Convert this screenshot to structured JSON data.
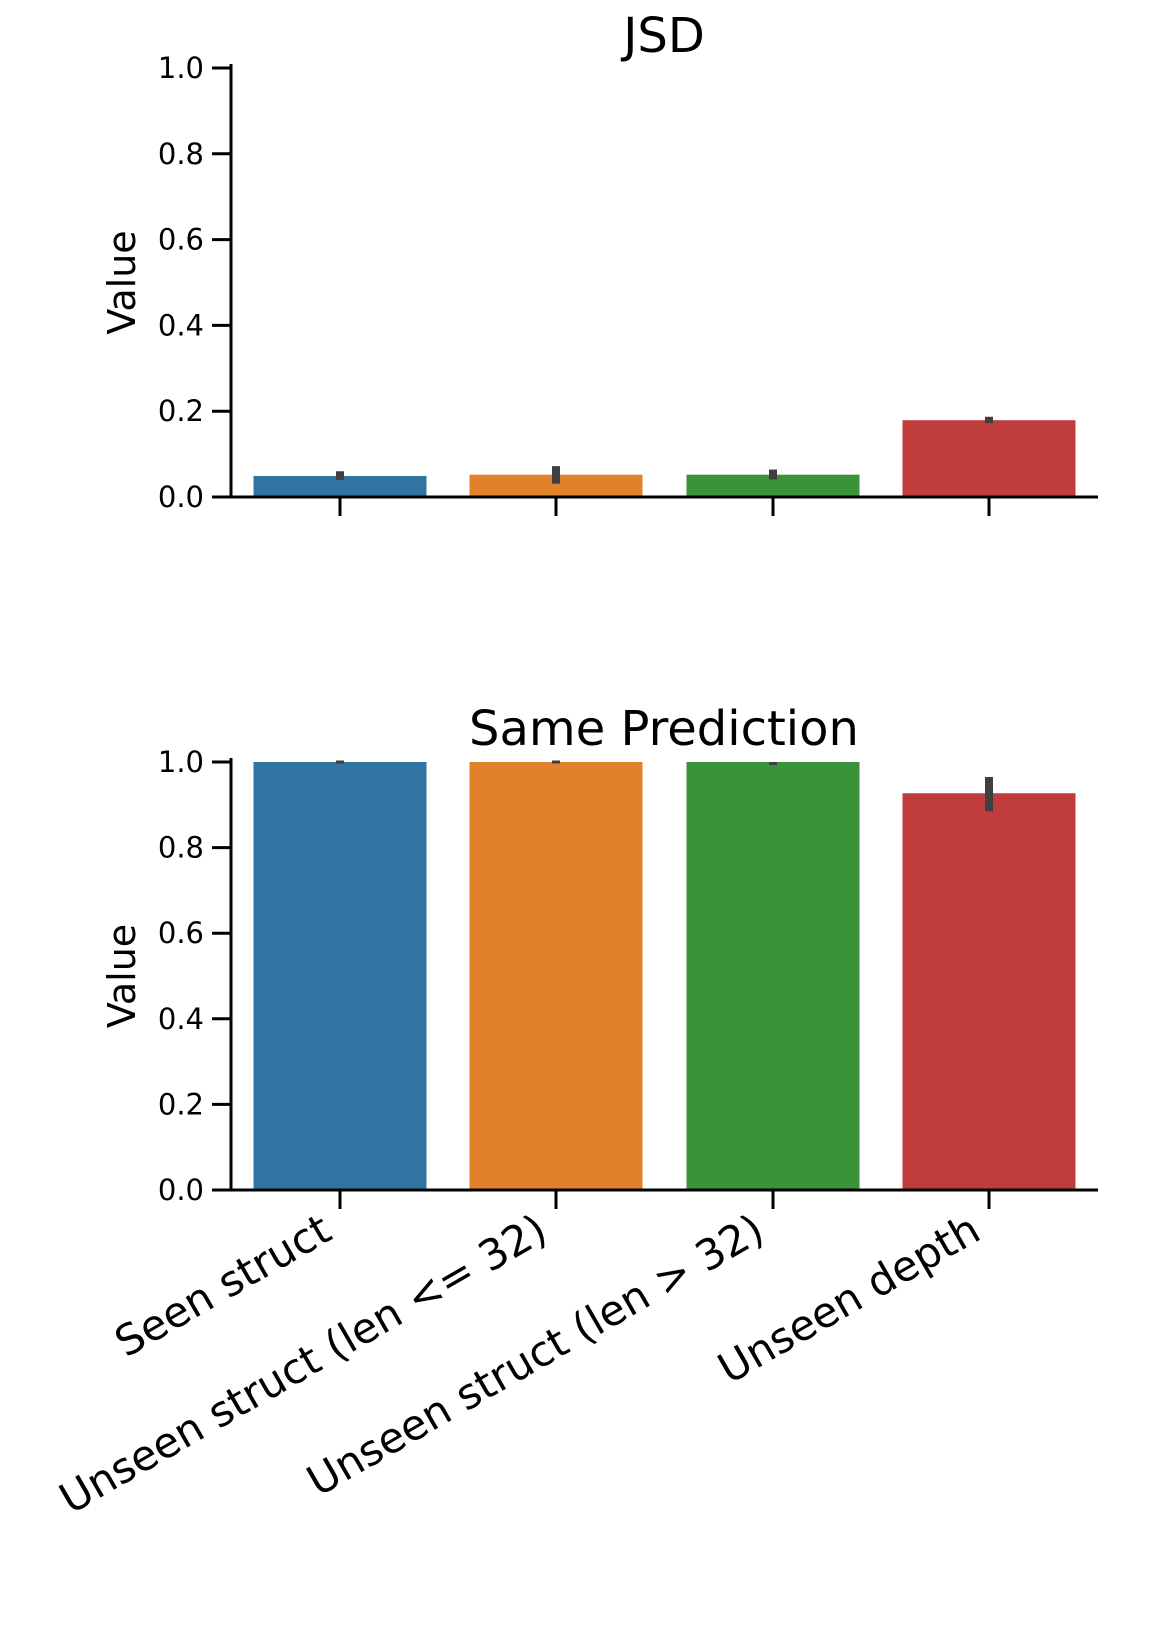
{
  "chart_data": [
    {
      "type": "bar",
      "title": "JSD",
      "xlabel": "",
      "ylabel": "Value",
      "ylim": [
        0.0,
        1.0
      ],
      "yticks": [
        "0.0",
        "0.2",
        "0.4",
        "0.6",
        "0.8",
        "1.0"
      ],
      "yticks_values": [
        0.0,
        0.2,
        0.4,
        0.6,
        0.8,
        1.0
      ],
      "categories": [
        "Seen struct",
        "Unseen struct (len <= 32)",
        "Unseen struct (len > 32)",
        "Unseen depth"
      ],
      "show_category_labels": false,
      "values": [
        0.049,
        0.052,
        0.052,
        0.179
      ],
      "error_low": [
        0.04,
        0.031,
        0.041,
        0.172
      ],
      "error_high": [
        0.06,
        0.072,
        0.064,
        0.187
      ],
      "colors": [
        "#3274a1",
        "#e1812c",
        "#3a923a",
        "#c03d3e"
      ],
      "grid": false
    },
    {
      "type": "bar",
      "title": "Same Prediction",
      "xlabel": "",
      "ylabel": "Value",
      "ylim": [
        0.0,
        1.0
      ],
      "yticks": [
        "0.0",
        "0.2",
        "0.4",
        "0.6",
        "0.8",
        "1.0"
      ],
      "yticks_values": [
        0.0,
        0.2,
        0.4,
        0.6,
        0.8,
        1.0
      ],
      "categories": [
        "Seen struct",
        "Unseen struct (len <= 32)",
        "Unseen struct (len > 32)",
        "Unseen depth"
      ],
      "show_category_labels": true,
      "values": [
        1.0,
        1.0,
        1.0,
        0.927
      ],
      "error_low": [
        1.0,
        1.0,
        0.993,
        0.885
      ],
      "error_high": [
        1.0,
        1.0,
        1.0,
        0.965
      ],
      "colors": [
        "#3274a1",
        "#e1812c",
        "#3a923a",
        "#c03d3e"
      ],
      "grid": false
    }
  ]
}
